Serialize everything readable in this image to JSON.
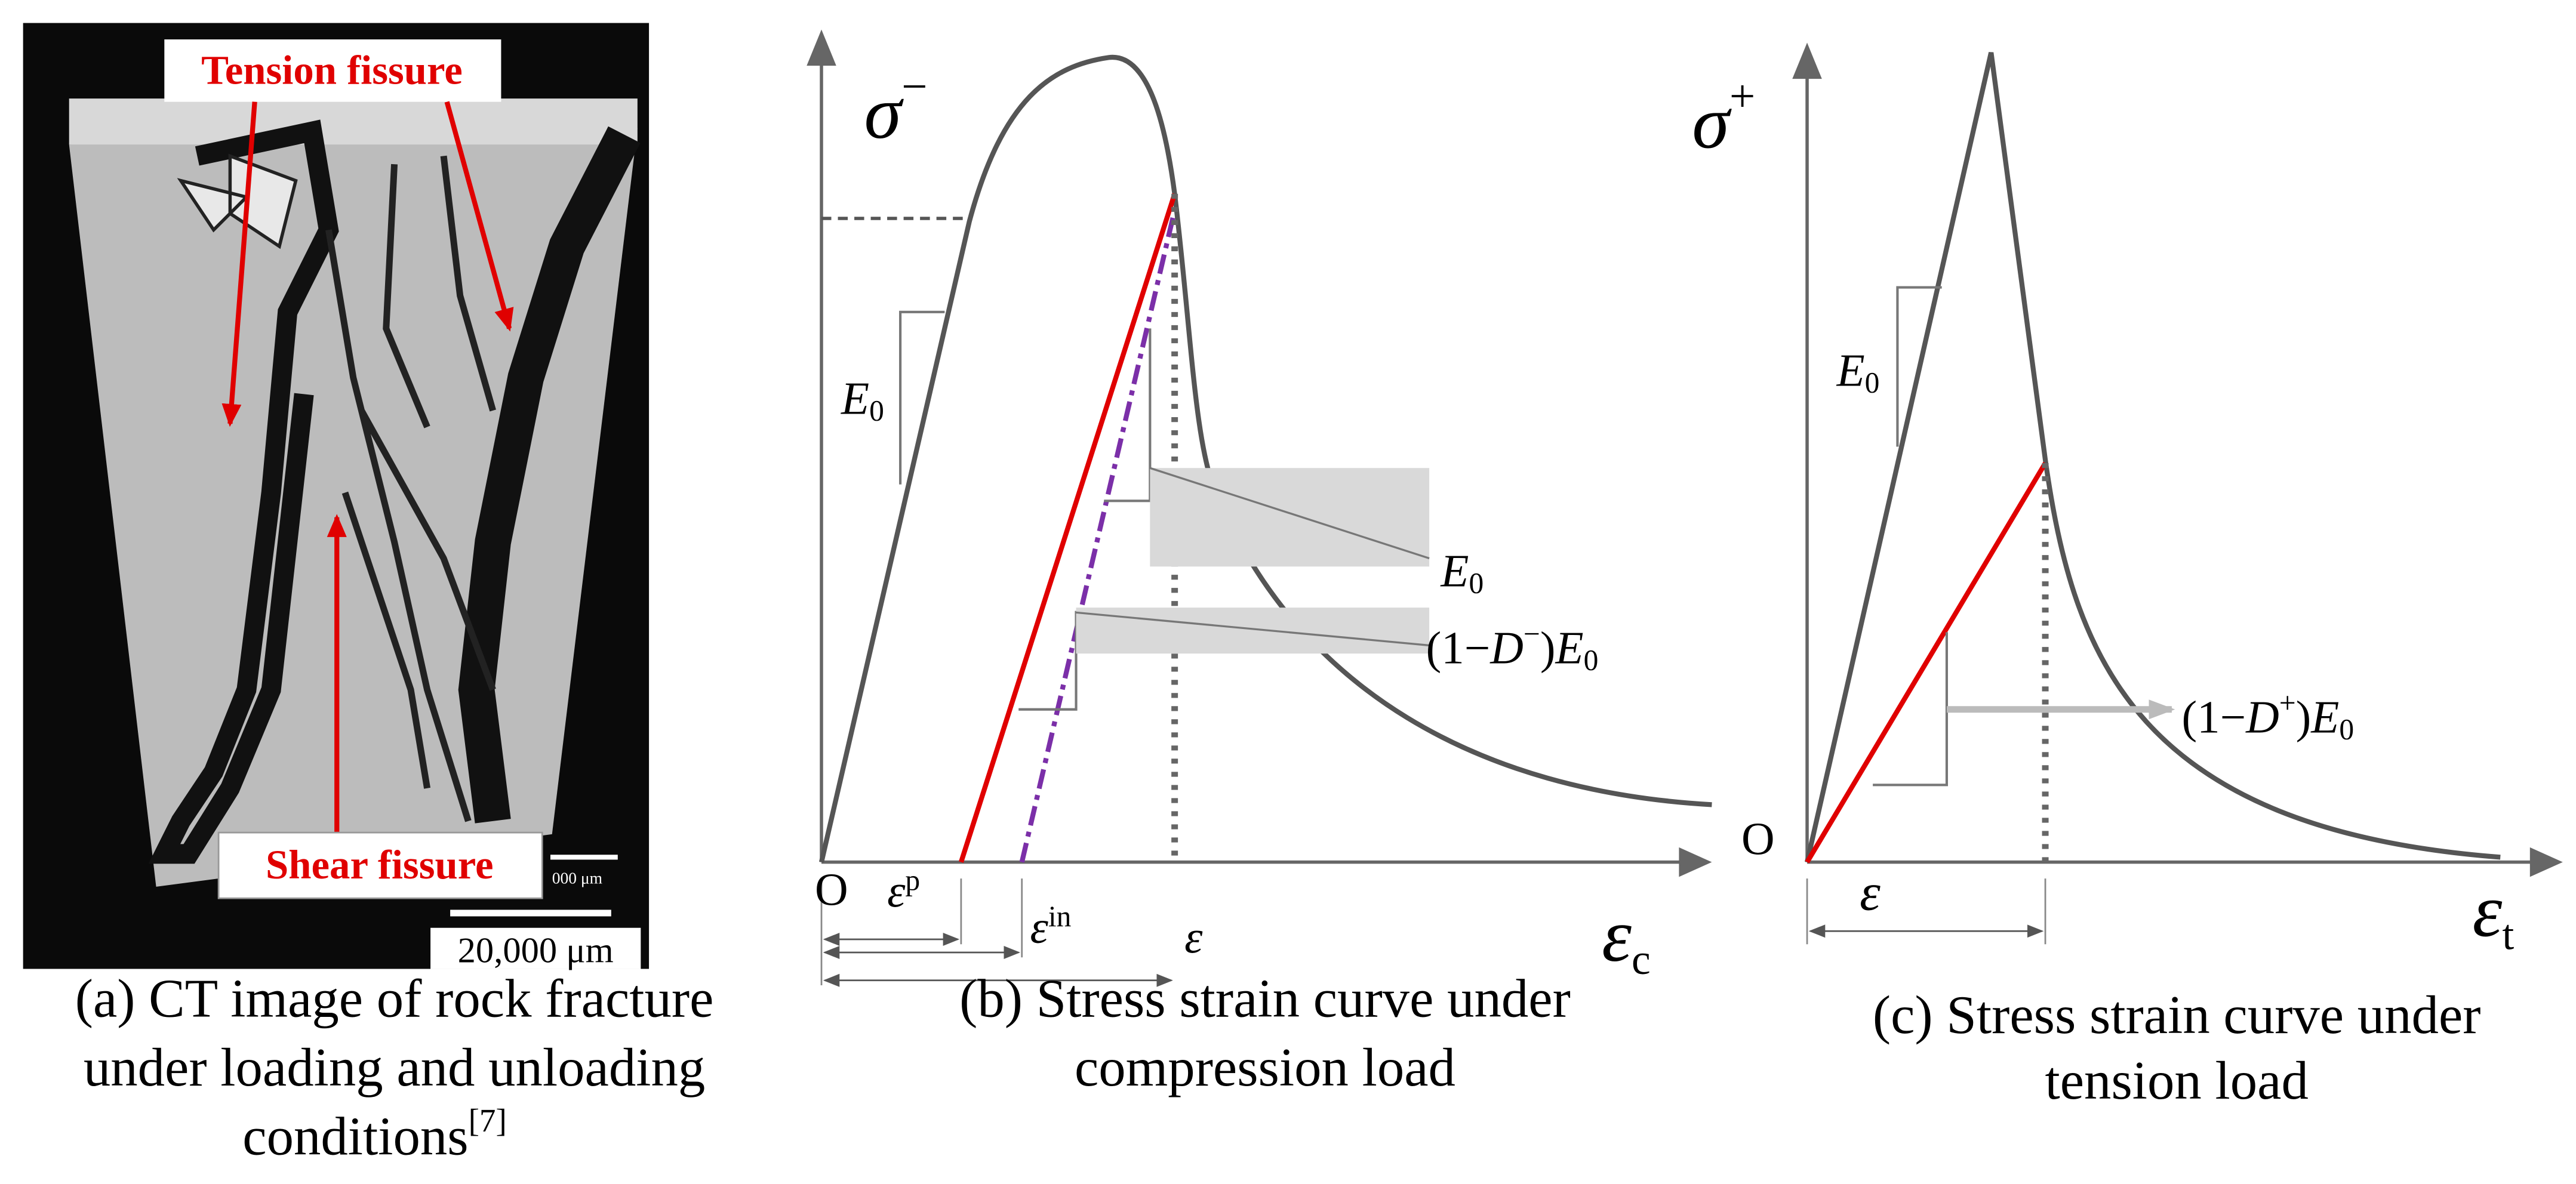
{
  "panel_a": {
    "tension_label": "Tension fissure",
    "shear_label": "Shear fissure",
    "scale_small": "000 μm",
    "scale_bar": "20,000 μm",
    "caption": [
      "(a) CT image of rock fracture",
      "under loading and unloading",
      "conditions"
    ],
    "caption_ref": "[7]"
  },
  "panel_b": {
    "y_axis": [
      "σ",
      "−"
    ],
    "x_axis": [
      "ε",
      "c"
    ],
    "origin": "O",
    "e0_left": [
      "E",
      "0"
    ],
    "e0_right": [
      "E",
      "0"
    ],
    "damaged": [
      "(1−",
      "D",
      "−",
      ")",
      "E",
      "0"
    ],
    "eps_p": [
      "ε",
      "p"
    ],
    "eps_in": [
      "ε",
      "in"
    ],
    "eps": "ε",
    "caption": [
      "(b) Stress strain curve under",
      "compression load"
    ]
  },
  "panel_c": {
    "y_axis": [
      "σ",
      "+"
    ],
    "x_axis": [
      "ε",
      "t"
    ],
    "origin": "O",
    "e0": [
      "E",
      "0"
    ],
    "damaged": [
      "(1−",
      "D",
      "+",
      ")",
      "E",
      "0"
    ],
    "eps": "ε",
    "caption": [
      "(c) Stress strain curve under",
      "tension load"
    ]
  }
}
